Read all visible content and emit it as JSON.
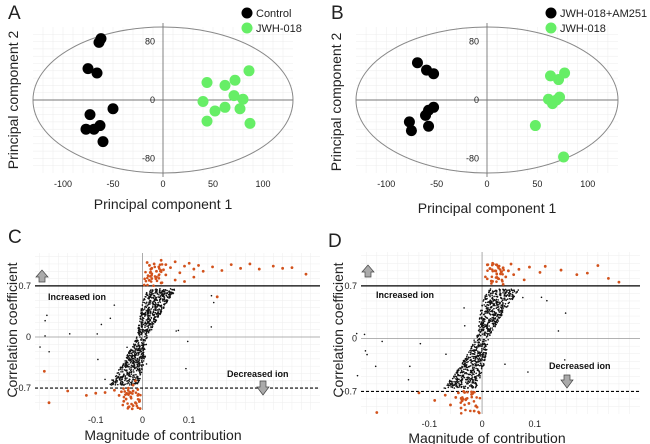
{
  "chart_data": [
    {
      "panel": "A",
      "type": "scatter",
      "xlabel": "Principal component 1",
      "ylabel": "Principal component 2",
      "xlim": [
        -130,
        130
      ],
      "ylim": [
        -100,
        100
      ],
      "xticks": [
        -100,
        -50,
        0,
        50,
        100
      ],
      "yticks": [
        -80,
        0,
        80
      ],
      "xtick_labels": [
        "-100",
        "-50",
        "0",
        "50",
        "100"
      ],
      "ytick_labels": [
        "-80",
        "0",
        "80"
      ],
      "legend_position": "top-right",
      "series": [
        {
          "name": "Control",
          "color": "#000000",
          "points": [
            [
              -62,
              84
            ],
            [
              -64,
              79
            ],
            [
              -75,
              43
            ],
            [
              -66,
              37
            ],
            [
              -50,
              -12
            ],
            [
              -73,
              -20
            ],
            [
              -63,
              -35
            ],
            [
              -77,
              -40
            ],
            [
              -69,
              -40
            ],
            [
              -60,
              -57
            ]
          ]
        },
        {
          "name": "JWH-018",
          "color": "#66ee66",
          "points": [
            [
              86,
              40
            ],
            [
              44,
              24
            ],
            [
              72,
              27
            ],
            [
              62,
              20
            ],
            [
              71,
              6
            ],
            [
              80,
              1
            ],
            [
              40,
              -2
            ],
            [
              52,
              -15
            ],
            [
              62,
              -10
            ],
            [
              77,
              -12
            ],
            [
              44,
              -29
            ],
            [
              87,
              -32
            ]
          ]
        }
      ]
    },
    {
      "panel": "B",
      "type": "scatter",
      "xlabel": "Principal component 1",
      "ylabel": "Principal component 2",
      "xlim": [
        -130,
        130
      ],
      "ylim": [
        -100,
        100
      ],
      "xticks": [
        -100,
        -50,
        0,
        50,
        100
      ],
      "yticks": [
        -80,
        0,
        80
      ],
      "xtick_labels": [
        "-100",
        "-50",
        "0",
        "50",
        "100"
      ],
      "ytick_labels": [
        "-80",
        "0",
        "80"
      ],
      "legend_position": "top-right",
      "series": [
        {
          "name": "JWH-018+AM251",
          "color": "#000000",
          "points": [
            [
              -69,
              51
            ],
            [
              -60,
              41
            ],
            [
              -53,
              36
            ],
            [
              -53,
              -10
            ],
            [
              -58,
              -14
            ],
            [
              -61,
              -21
            ],
            [
              -77,
              -30
            ],
            [
              -58,
              -36
            ],
            [
              -75,
              -42
            ]
          ]
        },
        {
          "name": "JWH-018",
          "color": "#66ee66",
          "points": [
            [
              77,
              37
            ],
            [
              63,
              33
            ],
            [
              71,
              28
            ],
            [
              72,
              4
            ],
            [
              61,
              1
            ],
            [
              69,
              0
            ],
            [
              65,
              -5
            ],
            [
              48,
              -35
            ],
            [
              76,
              -78
            ]
          ]
        }
      ]
    },
    {
      "panel": "C",
      "type": "scatter",
      "xlabel": "Magnitude of contribution",
      "ylabel": "Correlation coefficient",
      "xlim": [
        -0.23,
        0.38
      ],
      "ylim": [
        -1.0,
        1.15
      ],
      "xticks": [
        -0.1,
        0,
        0.1
      ],
      "yticks": [
        -0.7,
        0,
        0.7
      ],
      "xtick_labels": [
        "-0.1",
        "0",
        "0.1"
      ],
      "ytick_labels": [
        "-0.7",
        "0",
        "0.7"
      ],
      "thresholds": [
        0.7,
        -0.7
      ],
      "annotations": [
        "Increased ion",
        "Decreased ion"
      ],
      "highlight_color": "#d2521c",
      "series": [
        {
          "name": "Increased ions",
          "color": "#d2521c",
          "points": [
            [
              0.01,
              1.02
            ],
            [
              0.015,
              0.98
            ],
            [
              0.02,
              0.94
            ],
            [
              0.025,
              1.0
            ],
            [
              0.03,
              0.9
            ],
            [
              0.035,
              0.96
            ],
            [
              0.04,
              1.05
            ],
            [
              0.045,
              0.92
            ],
            [
              0.05,
              0.99
            ],
            [
              0.06,
              0.95
            ],
            [
              0.07,
              1.03
            ],
            [
              0.08,
              0.88
            ],
            [
              0.09,
              0.97
            ],
            [
              0.1,
              1.01
            ],
            [
              0.11,
              0.93
            ],
            [
              0.12,
              0.98
            ],
            [
              0.13,
              0.9
            ],
            [
              0.15,
              0.96
            ],
            [
              0.17,
              0.91
            ],
            [
              0.19,
              0.99
            ],
            [
              0.21,
              0.94
            ],
            [
              0.23,
              1.0
            ],
            [
              0.25,
              0.93
            ],
            [
              0.28,
              0.97
            ],
            [
              0.3,
              0.94
            ],
            [
              0.32,
              0.95
            ],
            [
              0.35,
              0.86
            ],
            [
              0.012,
              0.84
            ],
            [
              0.02,
              0.8
            ],
            [
              0.03,
              0.82
            ],
            [
              0.05,
              0.85
            ],
            [
              0.07,
              0.78
            ],
            [
              0.11,
              0.82
            ],
            [
              0.16,
              0.55
            ],
            [
              0.04,
              0.74
            ],
            [
              0.09,
              0.76
            ]
          ]
        },
        {
          "name": "Decreased ions",
          "color": "#d2521c",
          "points": [
            [
              -0.02,
              -0.74
            ],
            [
              -0.03,
              -0.78
            ],
            [
              -0.025,
              -0.82
            ],
            [
              -0.035,
              -0.85
            ],
            [
              -0.01,
              -0.8
            ],
            [
              -0.015,
              -0.9
            ],
            [
              -0.02,
              -0.94
            ],
            [
              -0.03,
              -0.96
            ],
            [
              -0.04,
              -0.88
            ],
            [
              -0.005,
              -0.98
            ],
            [
              -0.01,
              -0.72
            ],
            [
              -0.045,
              -0.75
            ],
            [
              -0.05,
              -0.8
            ],
            [
              -0.06,
              -0.73
            ],
            [
              -0.08,
              -0.76
            ],
            [
              -0.1,
              -0.77
            ],
            [
              -0.12,
              -0.8
            ],
            [
              -0.16,
              -0.74
            ],
            [
              -0.2,
              -0.9
            ],
            [
              -0.21,
              -0.47
            ],
            [
              -0.03,
              -0.7
            ],
            [
              -0.02,
              -0.66
            ],
            [
              -0.015,
              -0.6
            ]
          ]
        }
      ]
    },
    {
      "panel": "D",
      "type": "scatter",
      "xlabel": "Magnitude of contribution",
      "ylabel": "Correlation coefficient",
      "xlim": [
        -0.23,
        0.3
      ],
      "ylim": [
        -1.0,
        1.15
      ],
      "xticks": [
        -0.1,
        0,
        0.1
      ],
      "yticks": [
        -0.7,
        0,
        0.7
      ],
      "xtick_labels": [
        "-0.1",
        "0",
        "0.1"
      ],
      "ytick_labels": [
        "-0.7",
        "0",
        "0.7"
      ],
      "thresholds": [
        0.7,
        -0.7
      ],
      "annotations": [
        "Increased ion",
        "Decreased ion"
      ],
      "highlight_color": "#d2521c",
      "series": [
        {
          "name": "Increased ions",
          "color": "#d2521c",
          "points": [
            [
              0.01,
              0.98
            ],
            [
              0.015,
              0.93
            ],
            [
              0.02,
              1.0
            ],
            [
              0.025,
              0.9
            ],
            [
              0.03,
              0.96
            ],
            [
              0.035,
              0.86
            ],
            [
              0.04,
              0.94
            ],
            [
              0.045,
              0.82
            ],
            [
              0.05,
              0.9
            ],
            [
              0.055,
              0.99
            ],
            [
              0.06,
              0.85
            ],
            [
              0.07,
              0.92
            ],
            [
              0.08,
              0.78
            ],
            [
              0.09,
              0.95
            ],
            [
              0.11,
              0.88
            ],
            [
              0.12,
              0.96
            ],
            [
              0.15,
              0.91
            ],
            [
              0.18,
              0.85
            ],
            [
              0.2,
              0.87
            ],
            [
              0.22,
              0.97
            ],
            [
              0.24,
              0.8
            ],
            [
              0.26,
              0.75
            ],
            [
              0.02,
              0.76
            ],
            [
              0.04,
              0.72
            ],
            [
              0.03,
              0.8
            ]
          ]
        },
        {
          "name": "Decreased ions",
          "color": "#d2521c",
          "points": [
            [
              -0.02,
              -0.74
            ],
            [
              -0.03,
              -0.8
            ],
            [
              -0.025,
              -0.86
            ],
            [
              -0.04,
              -0.92
            ],
            [
              -0.015,
              -0.96
            ],
            [
              -0.05,
              -0.78
            ],
            [
              -0.06,
              -0.88
            ],
            [
              -0.07,
              -0.75
            ],
            [
              -0.09,
              -0.82
            ],
            [
              -0.12,
              -0.72
            ],
            [
              -0.2,
              -0.98
            ],
            [
              -0.035,
              -0.7
            ],
            [
              -0.045,
              -0.72
            ]
          ]
        }
      ]
    }
  ],
  "legend_a": {
    "entry1": "Control",
    "entry2": "JWH-018"
  },
  "legend_b": {
    "entry1": "JWH-018+AM251",
    "entry2": "JWH-018"
  },
  "panel_a": {
    "letter": "A",
    "xlabel": "Principal component 1",
    "ylabel": "Principal component 2"
  },
  "panel_b": {
    "letter": "B",
    "xlabel": "Principal component 1",
    "ylabel": "Principal component 2"
  },
  "panel_c": {
    "letter": "C",
    "xlabel": "Magnitude of contribution",
    "ylabel": "Correlation coefficient",
    "increased": "Increased ion",
    "decreased": "Decreased ion"
  },
  "panel_d": {
    "letter": "D",
    "xlabel": "Magnitude of contribution",
    "ylabel": "Correlation coefficient",
    "increased": "Increased ion",
    "decreased": "Decreased ion"
  }
}
